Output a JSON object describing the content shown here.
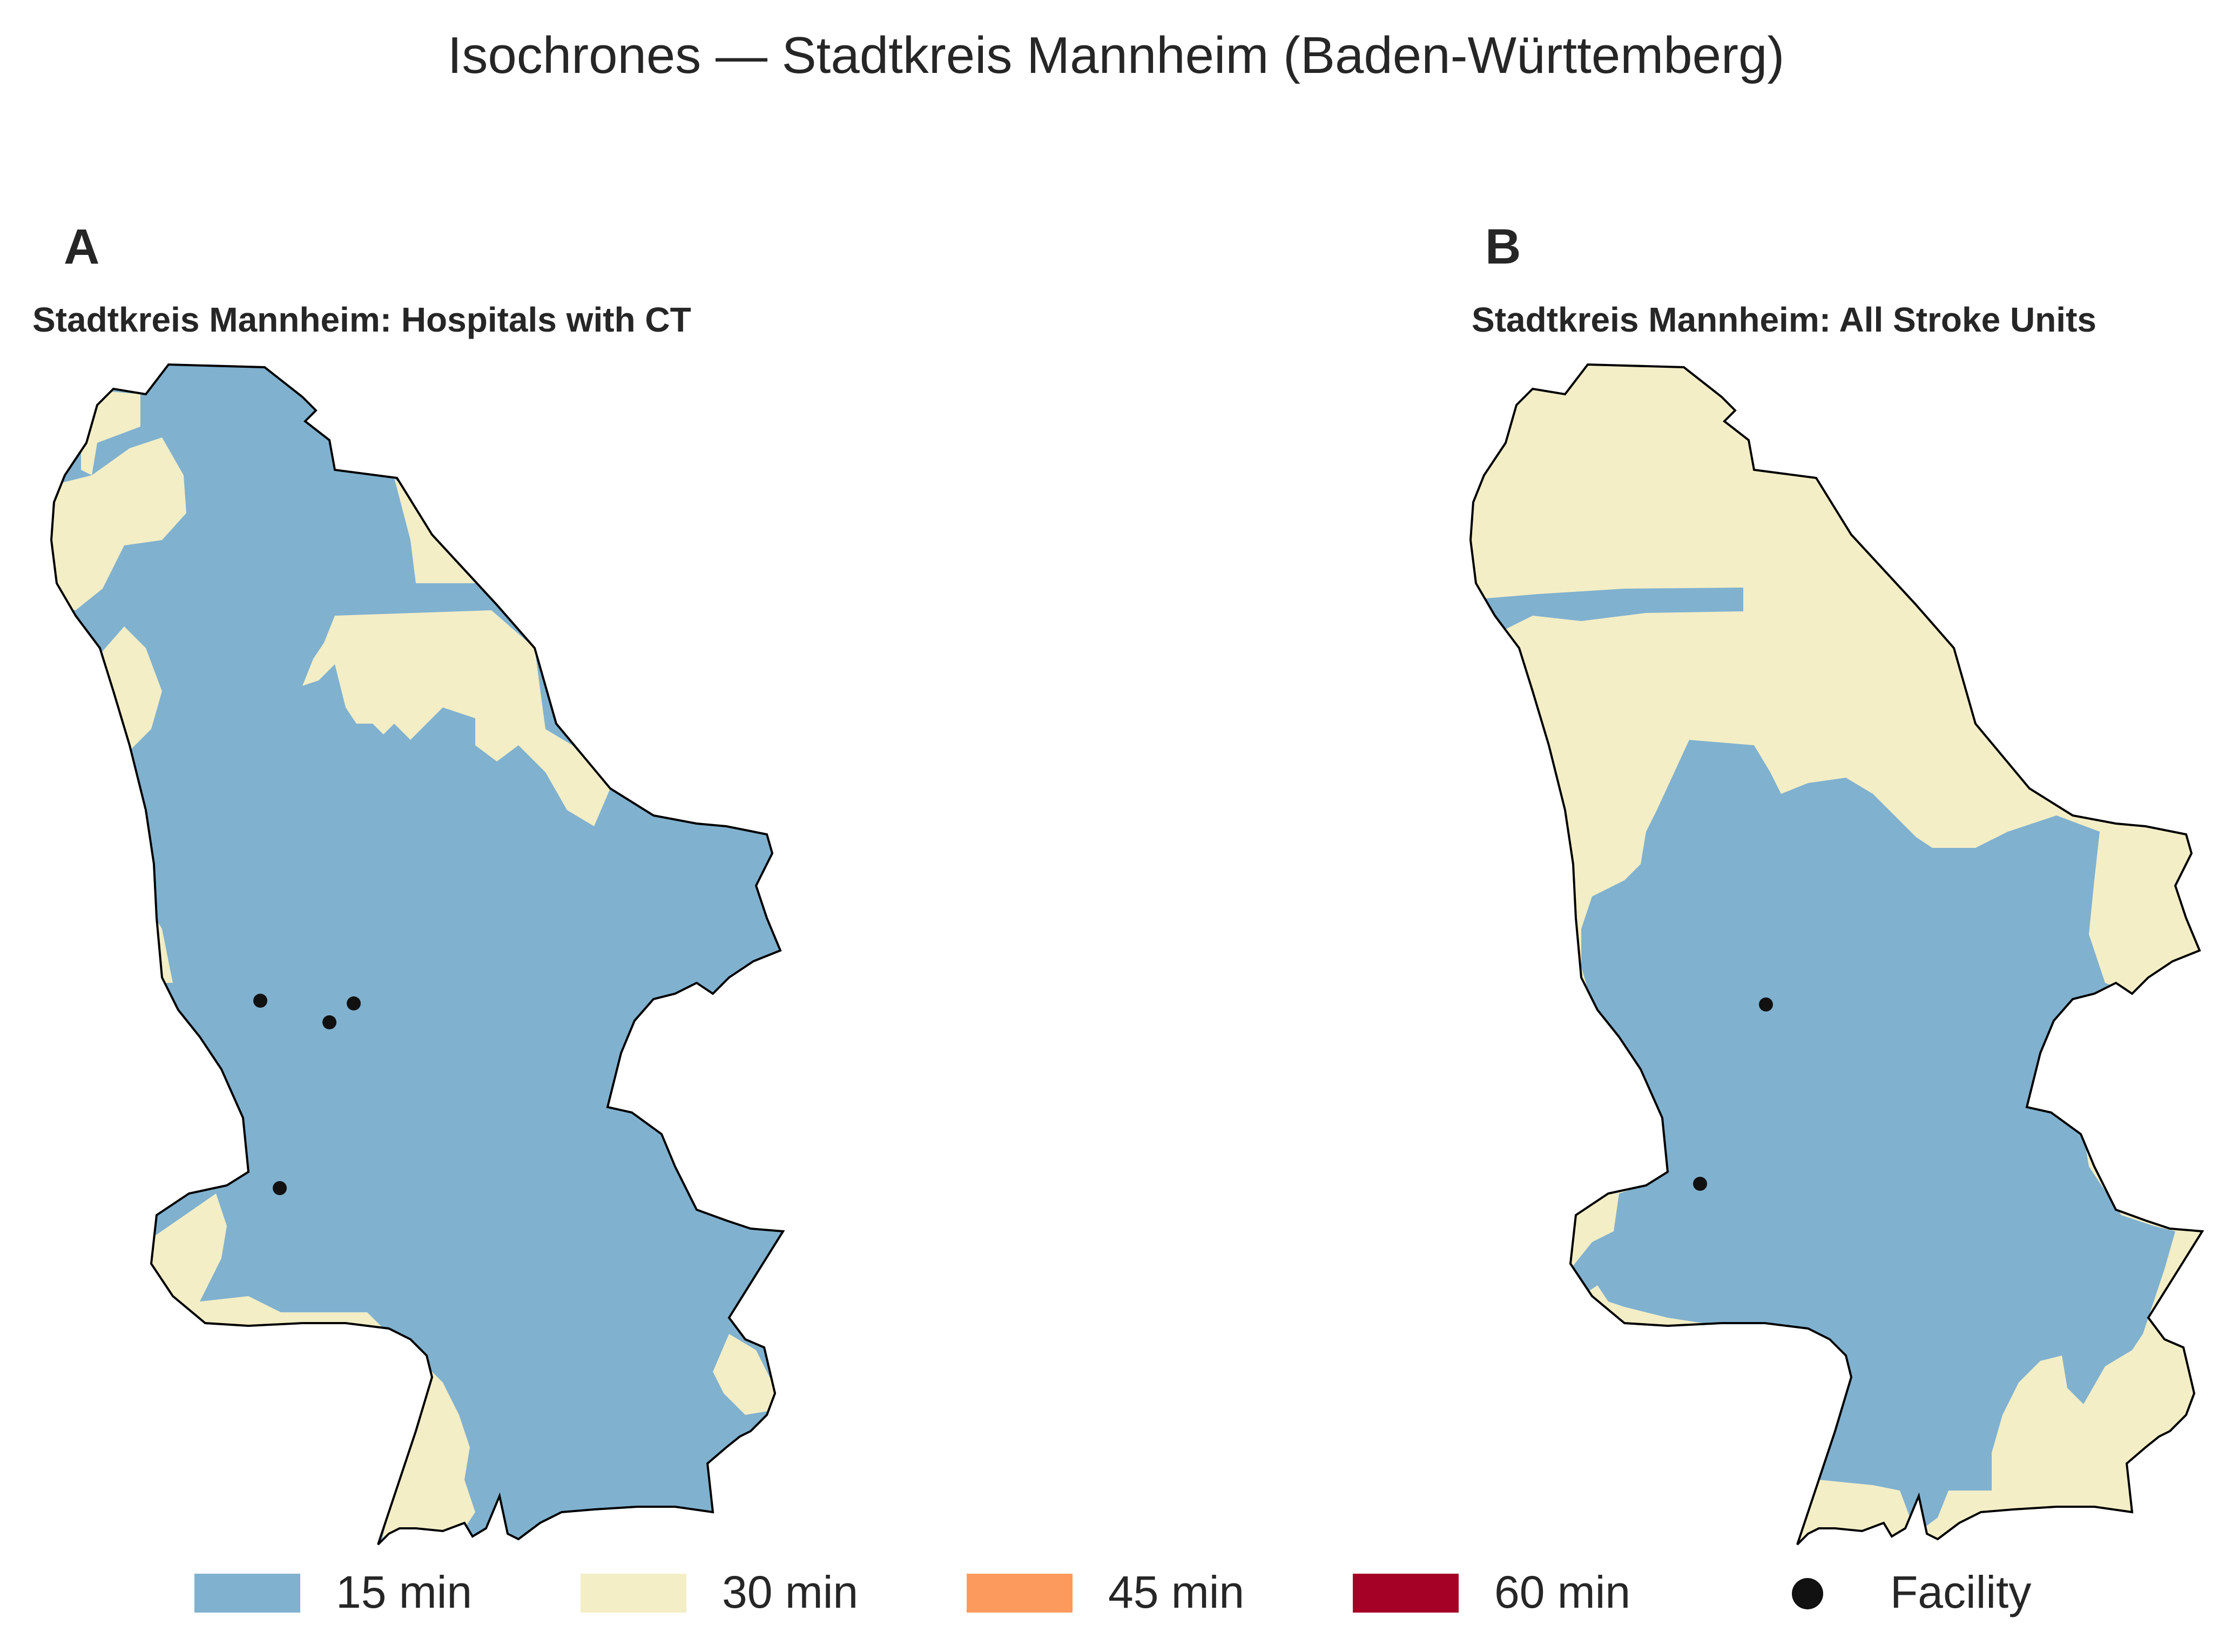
{
  "figure": {
    "title": "Isochrones — Stadtkreis Mannheim (Baden-Württemberg)"
  },
  "panels": [
    {
      "letter": "A",
      "title": "Stadtkreis Mannheim: Hospitals with CT",
      "facility_count": 4
    },
    {
      "letter": "B",
      "title": "Stadtkreis Mannheim: All Stroke Units",
      "facility_count": 2
    }
  ],
  "legend": [
    {
      "label": "15 min",
      "color": "#80b1cf"
    },
    {
      "label": "30 min",
      "color": "#f3eec6"
    },
    {
      "label": "45 min",
      "color": "#fb9a5c"
    },
    {
      "label": "60 min",
      "color": "#a50026"
    },
    {
      "label": "Facility",
      "color": "#111111",
      "icon": "filled-circle"
    }
  ],
  "colors": {
    "zone_15": "#80b1cf",
    "zone_30": "#f3eec6",
    "outline": "#000000",
    "facility": "#111111"
  }
}
